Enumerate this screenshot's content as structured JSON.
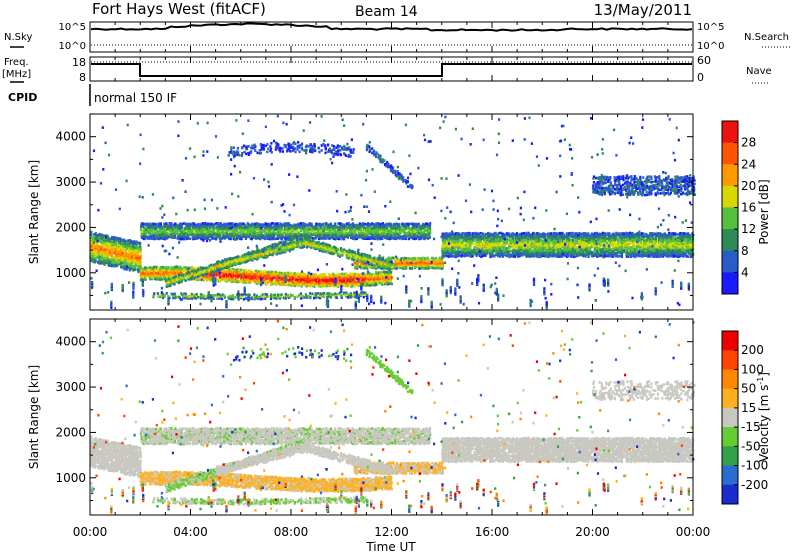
{
  "header": {
    "site": "Fort Hays West (fitACF)",
    "beam": "Beam 14",
    "date": "13/May/2011"
  },
  "noise_panel": {
    "left_label": "N.Sky",
    "right_label": "N.Search",
    "ticks_left": [
      "10^5",
      "10^0"
    ],
    "ticks_right": [
      "10^5",
      "10^0"
    ]
  },
  "freq_panel": {
    "left_label_1": "Freq.",
    "left_label_2": "[MHz]",
    "right_label": "Nave",
    "ticks_left": [
      "18",
      "8"
    ],
    "ticks_right": [
      "60",
      "0"
    ]
  },
  "cpid": {
    "label": "CPID",
    "text": "normal 150 IF"
  },
  "chart_data": [
    {
      "type": "heatmap",
      "name": "power",
      "ylabel": "Slant Range [km]",
      "yticks": [
        1000,
        2000,
        3000,
        4000
      ],
      "ylim": [
        180,
        4500
      ],
      "colorbar_label": "Power [dB]",
      "colorbar_ticks": [
        "28",
        "24",
        "20",
        "16",
        "12",
        "8",
        "4"
      ],
      "colors": [
        "#1a1aff",
        "#2a5cc8",
        "#2e8b57",
        "#55c040",
        "#d8d800",
        "#ff9900",
        "#ff5500",
        "#ee1111"
      ]
    },
    {
      "type": "heatmap",
      "name": "velocity",
      "ylabel": "Slant Range [km]",
      "yticks": [
        1000,
        2000,
        3000,
        4000
      ],
      "ylim": [
        180,
        4500
      ],
      "colorbar_label": "Velocity [m s^-1]",
      "colorbar_ticks": [
        "200",
        "100",
        "50",
        "15",
        "-15",
        "-50",
        "-100",
        "-200"
      ],
      "colors": [
        "#1a2ccc",
        "#2a6cd0",
        "#2fa24a",
        "#66cc33",
        "#c8c8c0",
        "#ffb020",
        "#ff8800",
        "#ff4400",
        "#ee0000"
      ]
    }
  ],
  "x_axis": {
    "ticks": [
      "00:00",
      "04:00",
      "08:00",
      "12:00",
      "16:00",
      "20:00",
      "00:00"
    ],
    "label": "Time UT"
  }
}
